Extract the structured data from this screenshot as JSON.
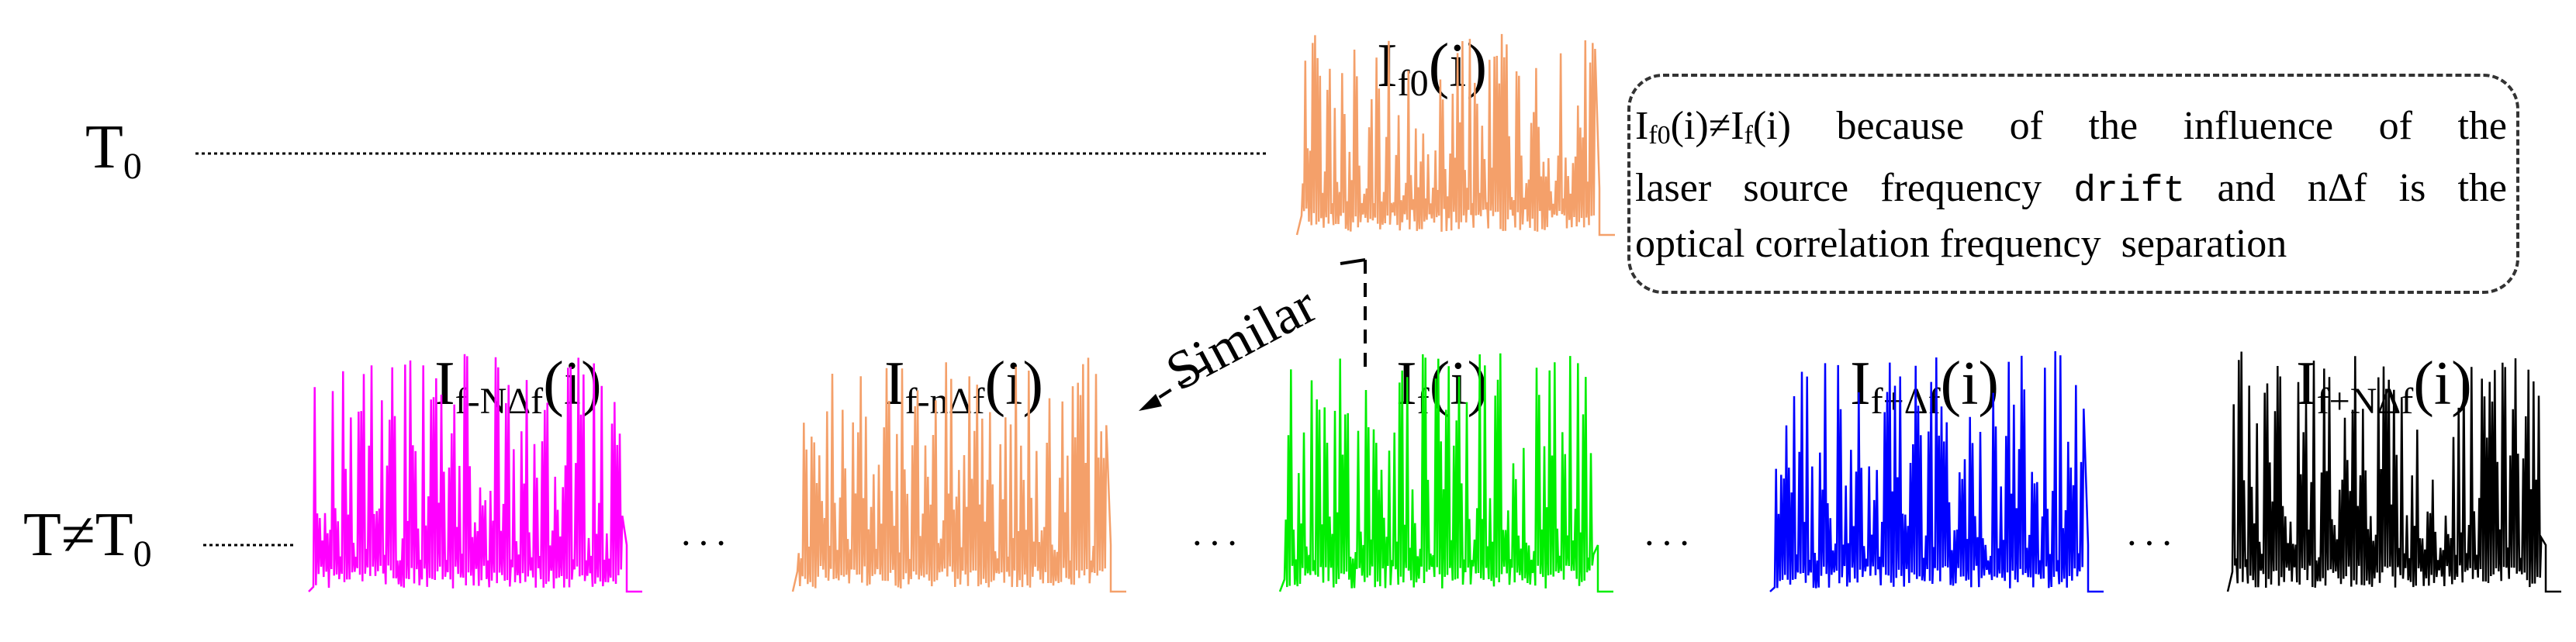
{
  "row_labels": {
    "t0": {
      "main": "T",
      "sub": "0"
    },
    "t_ne": {
      "main": "T≠T",
      "sub": "0"
    }
  },
  "reference_signal": {
    "main": "I",
    "sub": "f0",
    "arg": "(i)",
    "color": "#F4A06A"
  },
  "signals": [
    {
      "main": "I",
      "sub": "f-NΔf",
      "arg": "(i)",
      "color": "#FF00FF"
    },
    {
      "main": "I",
      "sub": "f-nΔf",
      "arg": "(i)",
      "color": "#F4A06A"
    },
    {
      "main": "I",
      "sub": "f",
      "arg": "(i)",
      "color": "#00EE00"
    },
    {
      "main": "I",
      "sub": "f+Δf",
      "arg": "(i)",
      "color": "#0000FF"
    },
    {
      "main": "I",
      "sub": "f+NΔf",
      "arg": "(i)",
      "color": "#000000"
    }
  ],
  "ellipsis": "···",
  "similar_label": "Similar",
  "note": {
    "line1_a": "I",
    "line1_sub1": "f0",
    "line1_b": "(i)≠I",
    "line1_sub2": "f",
    "line1_c": "(i)  because  of  the  influence  of  the",
    "line2_a": "laser source frequency ",
    "line2_mono": "drift",
    "line2_b": " and nΔf is the",
    "line3": "optical correlation frequency  separation"
  }
}
